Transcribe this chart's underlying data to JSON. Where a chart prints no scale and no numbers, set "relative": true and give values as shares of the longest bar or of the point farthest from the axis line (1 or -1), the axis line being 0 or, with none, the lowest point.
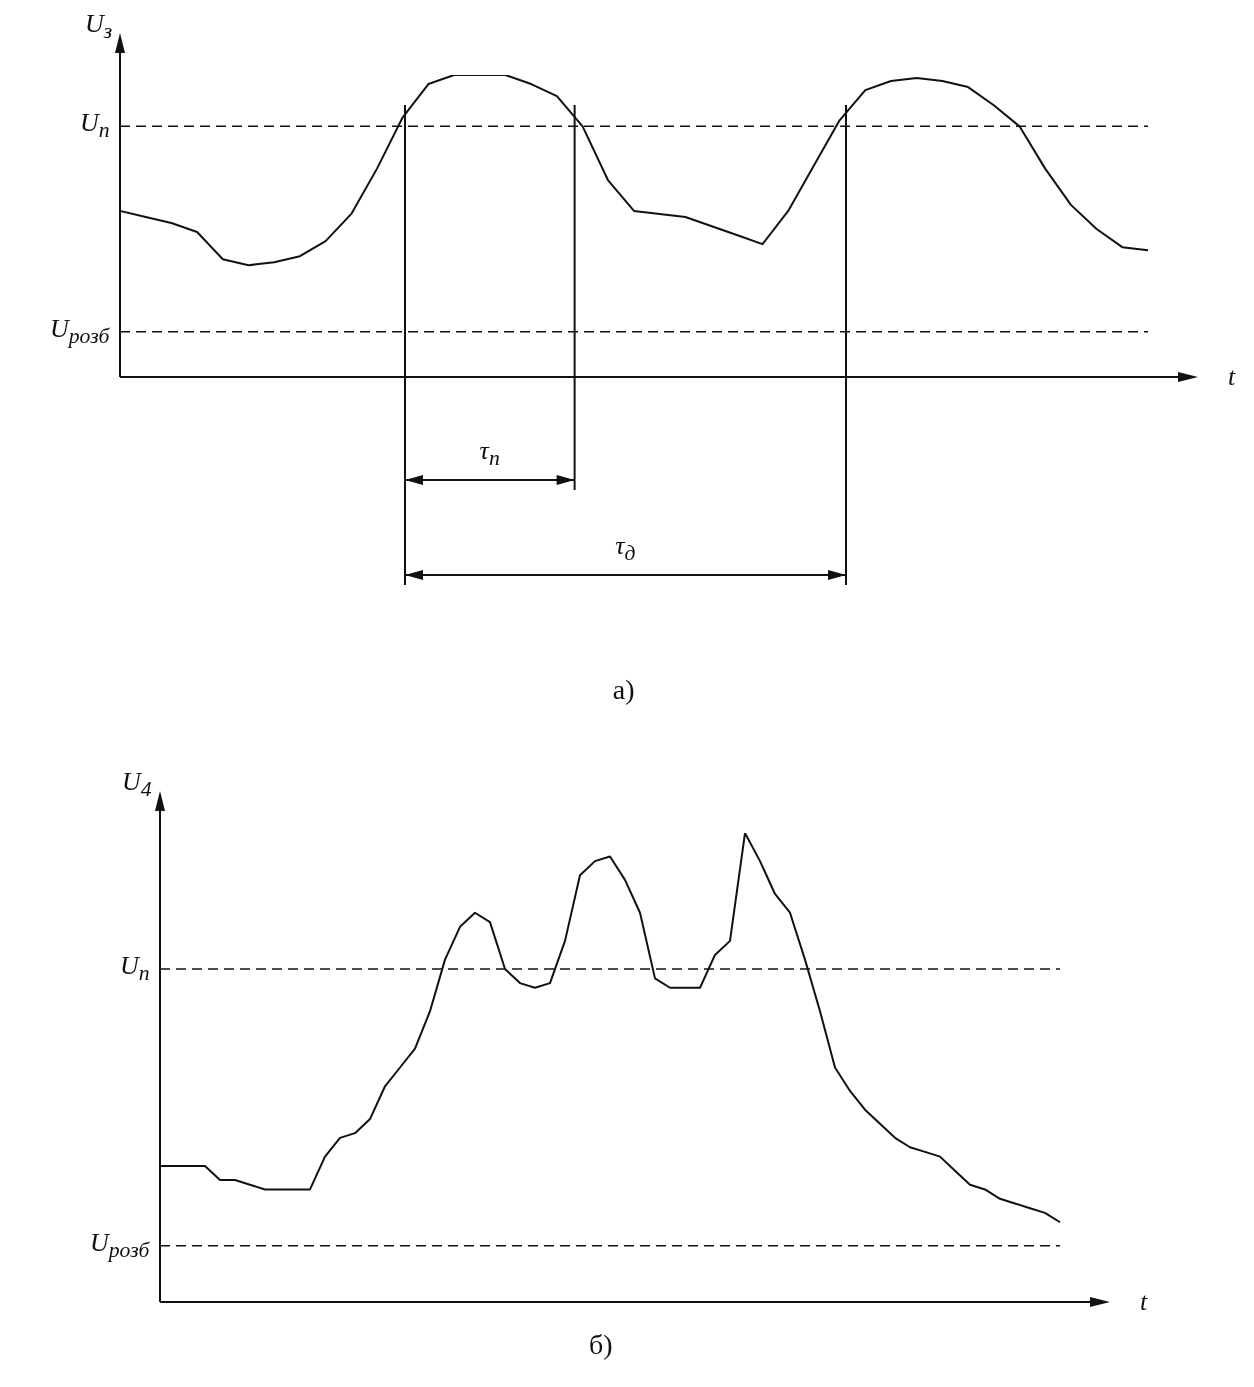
{
  "chart_data": [
    {
      "type": "line",
      "title": "а)",
      "xlabel": "t",
      "ylabel": "U$_{з}$",
      "relative": true,
      "marker": "none",
      "line_style": "solid",
      "categories": [
        null,
        null,
        null,
        null,
        null,
        null,
        null,
        null,
        null,
        null,
        null,
        null,
        null,
        null,
        null,
        null,
        null,
        null,
        null,
        null,
        null,
        null,
        null,
        null,
        null,
        null,
        null,
        null,
        null,
        null,
        null,
        null,
        null,
        null,
        null,
        null,
        null,
        null,
        null,
        null,
        null
      ],
      "series": [
        {
          "color": "#111111",
          "values": [
            0.55,
            0.53,
            0.51,
            0.48,
            0.39,
            0.37,
            0.38,
            0.4,
            0.45,
            0.54,
            0.69,
            0.86,
            0.97,
            1.0,
            1.0,
            1.0,
            0.97,
            0.93,
            0.83,
            0.65,
            0.55,
            0.54,
            0.53,
            0.5,
            0.47,
            0.44,
            0.55,
            0.7,
            0.85,
            0.95,
            0.98,
            0.99,
            0.98,
            0.96,
            0.9,
            0.83,
            0.69,
            0.57,
            0.49,
            0.43,
            0.42
          ]
        }
      ],
      "ref_lines": [
        {
          "axis": "y",
          "value": 0.83,
          "label": "U$_{п}$",
          "line_style": "dashed"
        },
        {
          "axis": "y",
          "value": 0.15,
          "label": "U$_{розб}$",
          "line_style": "dashed"
        }
      ],
      "annotations": [
        "τ$_{п}$",
        "τ$_{д}$"
      ]
    },
    {
      "type": "line",
      "title": "б)",
      "xlabel": "t",
      "ylabel": "U$_{4}$",
      "relative": true,
      "marker": "none",
      "line_style": "solid",
      "categories": [
        null,
        null,
        null,
        null,
        null,
        null,
        null,
        null,
        null,
        null,
        null,
        null,
        null,
        null,
        null,
        null,
        null,
        null,
        null,
        null,
        null,
        null,
        null,
        null,
        null,
        null,
        null,
        null,
        null,
        null,
        null,
        null,
        null,
        null,
        null,
        null,
        null,
        null,
        null,
        null,
        null,
        null,
        null,
        null,
        null,
        null,
        null,
        null,
        null,
        null,
        null,
        null,
        null,
        null,
        null,
        null,
        null,
        null,
        null,
        null,
        null
      ],
      "series": [
        {
          "color": "#111111",
          "values": [
            0.29,
            0.29,
            0.29,
            0.29,
            0.26,
            0.26,
            0.25,
            0.24,
            0.24,
            0.24,
            0.24,
            0.31,
            0.35,
            0.36,
            0.39,
            0.46,
            0.5,
            0.54,
            0.62,
            0.73,
            0.8,
            0.83,
            0.81,
            0.71,
            0.68,
            0.67,
            0.68,
            0.77,
            0.91,
            0.94,
            0.95,
            0.9,
            0.83,
            0.69,
            0.67,
            0.67,
            0.67,
            0.74,
            0.77,
            1.0,
            0.94,
            0.87,
            0.83,
            0.73,
            0.62,
            0.5,
            0.45,
            0.41,
            0.38,
            0.35,
            0.33,
            0.32,
            0.31,
            0.28,
            0.25,
            0.24,
            0.22,
            0.21,
            0.2,
            0.19,
            0.17
          ]
        }
      ],
      "ref_lines": [
        {
          "axis": "y",
          "value": 0.71,
          "label": "U$_{п}$",
          "line_style": "dashed"
        },
        {
          "axis": "y",
          "value": 0.12,
          "label": "U$_{розб}$",
          "line_style": "dashed"
        }
      ]
    }
  ]
}
